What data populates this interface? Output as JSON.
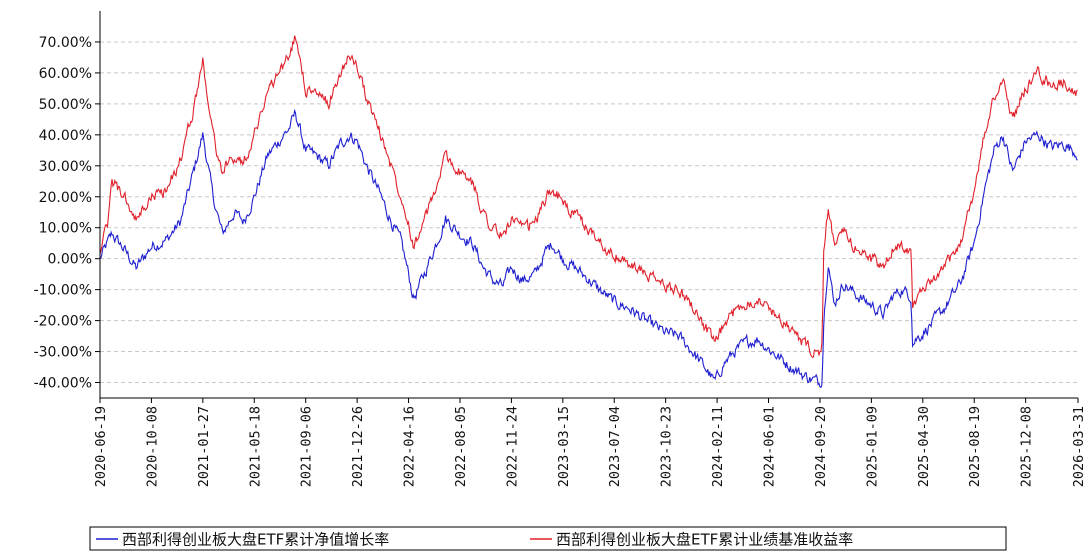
{
  "chart_data": {
    "type": "line",
    "title": "",
    "xlabel": "",
    "ylabel": "",
    "x_ticks": [
      "2020-06-19",
      "2020-10-08",
      "2021-01-27",
      "2021-05-18",
      "2021-09-06",
      "2021-12-26",
      "2022-04-16",
      "2022-08-05",
      "2022-11-24",
      "2023-03-15",
      "2023-07-04",
      "2023-10-23",
      "2024-02-11",
      "2024-06-01",
      "2024-09-20",
      "2025-01-09",
      "2025-04-30",
      "2025-08-19",
      "2025-12-08",
      "2026-03-31"
    ],
    "y_ticks": [
      "70.00%",
      "60.00%",
      "50.00%",
      "40.00%",
      "30.00%",
      "20.00%",
      "10.00%",
      "0.00%",
      "-10.00%",
      "-20.00%",
      "-30.00%",
      "-40.00%"
    ],
    "ylim": [
      -45,
      80
    ],
    "grid": true,
    "legend_position": "bottom",
    "series": [
      {
        "name": "西部利得创业板大盘ETF累计净值增长率",
        "color": "#1f1fd0",
        "points": [
          [
            "2020-06-19",
            0
          ],
          [
            "2020-07-15",
            8
          ],
          [
            "2020-08-10",
            3
          ],
          [
            "2020-09-05",
            -3
          ],
          [
            "2020-10-08",
            4
          ],
          [
            "2020-11-10",
            6
          ],
          [
            "2020-12-10",
            12
          ],
          [
            "2021-01-05",
            27
          ],
          [
            "2021-01-27",
            40
          ],
          [
            "2021-02-18",
            20
          ],
          [
            "2021-03-10",
            8
          ],
          [
            "2021-04-05",
            15
          ],
          [
            "2021-04-25",
            12
          ],
          [
            "2021-05-18",
            20
          ],
          [
            "2021-06-15",
            33
          ],
          [
            "2021-07-10",
            38
          ],
          [
            "2021-08-01",
            42
          ],
          [
            "2021-08-15",
            47
          ],
          [
            "2021-09-06",
            35
          ],
          [
            "2021-10-01",
            33
          ],
          [
            "2021-10-25",
            30
          ],
          [
            "2021-11-20",
            37
          ],
          [
            "2021-12-10",
            40
          ],
          [
            "2021-12-26",
            38
          ],
          [
            "2022-01-15",
            30
          ],
          [
            "2022-02-10",
            22
          ],
          [
            "2022-03-10",
            12
          ],
          [
            "2022-04-01",
            5
          ],
          [
            "2022-04-16",
            -5
          ],
          [
            "2022-04-27",
            -13
          ],
          [
            "2022-05-20",
            -5
          ],
          [
            "2022-06-15",
            5
          ],
          [
            "2022-07-05",
            13
          ],
          [
            "2022-08-05",
            8
          ],
          [
            "2022-09-01",
            5
          ],
          [
            "2022-09-25",
            -3
          ],
          [
            "2022-10-15",
            -7
          ],
          [
            "2022-11-05",
            -9
          ],
          [
            "2022-11-24",
            -3
          ],
          [
            "2022-12-20",
            -7
          ],
          [
            "2023-01-15",
            -5
          ],
          [
            "2023-02-05",
            2
          ],
          [
            "2023-02-20",
            5
          ],
          [
            "2023-03-15",
            0
          ],
          [
            "2023-04-10",
            -3
          ],
          [
            "2023-05-05",
            -6
          ],
          [
            "2023-06-01",
            -10
          ],
          [
            "2023-07-04",
            -14
          ],
          [
            "2023-08-05",
            -16
          ],
          [
            "2023-09-10",
            -20
          ],
          [
            "2023-10-23",
            -24
          ],
          [
            "2023-11-20",
            -25
          ],
          [
            "2023-12-20",
            -30
          ],
          [
            "2024-01-20",
            -36
          ],
          [
            "2024-02-06",
            -40
          ],
          [
            "2024-02-25",
            -34
          ],
          [
            "2024-03-20",
            -30
          ],
          [
            "2024-04-15",
            -27
          ],
          [
            "2024-05-10",
            -26
          ],
          [
            "2024-06-01",
            -29
          ],
          [
            "2024-06-25",
            -32
          ],
          [
            "2024-07-20",
            -35
          ],
          [
            "2024-08-20",
            -38
          ],
          [
            "2024-09-20",
            -40
          ],
          [
            "2024-09-25",
            -38
          ],
          [
            "2024-09-28",
            -20
          ],
          [
            "2024-10-08",
            0
          ],
          [
            "2024-10-20",
            -15
          ],
          [
            "2024-11-10",
            -8
          ],
          [
            "2024-12-10",
            -12
          ],
          [
            "2025-01-09",
            -15
          ],
          [
            "2025-02-05",
            -18
          ],
          [
            "2025-02-25",
            -12
          ],
          [
            "2025-03-15",
            -10
          ],
          [
            "2025-04-05",
            -12
          ],
          [
            "2025-04-08",
            -27
          ],
          [
            "2025-04-30",
            -24
          ],
          [
            "2025-05-25",
            -20
          ],
          [
            "2025-06-20",
            -15
          ],
          [
            "2025-07-20",
            -8
          ],
          [
            "2025-08-19",
            5
          ],
          [
            "2025-09-10",
            22
          ],
          [
            "2025-10-01",
            35
          ],
          [
            "2025-10-20",
            40
          ],
          [
            "2025-11-10",
            28
          ],
          [
            "2025-12-08",
            38
          ],
          [
            "2026-01-05",
            40
          ],
          [
            "2026-02-01",
            36
          ],
          [
            "2026-03-01",
            37
          ],
          [
            "2026-03-31",
            34
          ]
        ]
      },
      {
        "name": "西部利得创业板大盘ETF累计业绩基准收益率",
        "color": "#e0202a",
        "points": [
          [
            "2020-06-19",
            3
          ],
          [
            "2020-07-05",
            10
          ],
          [
            "2020-07-15",
            25
          ],
          [
            "2020-08-10",
            20
          ],
          [
            "2020-09-05",
            12
          ],
          [
            "2020-10-08",
            20
          ],
          [
            "2020-11-10",
            22
          ],
          [
            "2020-12-10",
            32
          ],
          [
            "2021-01-05",
            47
          ],
          [
            "2021-01-27",
            64
          ],
          [
            "2021-02-18",
            40
          ],
          [
            "2021-03-10",
            28
          ],
          [
            "2021-04-05",
            33
          ],
          [
            "2021-04-25",
            31
          ],
          [
            "2021-05-18",
            40
          ],
          [
            "2021-06-15",
            54
          ],
          [
            "2021-07-10",
            60
          ],
          [
            "2021-08-01",
            65
          ],
          [
            "2021-08-15",
            72
          ],
          [
            "2021-09-06",
            55
          ],
          [
            "2021-10-01",
            53
          ],
          [
            "2021-10-25",
            50
          ],
          [
            "2021-11-20",
            60
          ],
          [
            "2021-12-10",
            66
          ],
          [
            "2021-12-26",
            62
          ],
          [
            "2022-01-15",
            52
          ],
          [
            "2022-02-10",
            42
          ],
          [
            "2022-03-10",
            30
          ],
          [
            "2022-04-01",
            20
          ],
          [
            "2022-04-16",
            12
          ],
          [
            "2022-04-27",
            4
          ],
          [
            "2022-05-20",
            12
          ],
          [
            "2022-06-15",
            23
          ],
          [
            "2022-07-05",
            33
          ],
          [
            "2022-08-05",
            28
          ],
          [
            "2022-09-01",
            24
          ],
          [
            "2022-09-25",
            15
          ],
          [
            "2022-10-15",
            10
          ],
          [
            "2022-11-05",
            7
          ],
          [
            "2022-11-24",
            13
          ],
          [
            "2022-12-20",
            9
          ],
          [
            "2023-01-15",
            12
          ],
          [
            "2023-02-05",
            19
          ],
          [
            "2023-02-20",
            23
          ],
          [
            "2023-03-15",
            18
          ],
          [
            "2023-04-10",
            14
          ],
          [
            "2023-05-05",
            10
          ],
          [
            "2023-06-01",
            6
          ],
          [
            "2023-07-04",
            1
          ],
          [
            "2023-08-05",
            -2
          ],
          [
            "2023-09-10",
            -5
          ],
          [
            "2023-10-23",
            -9
          ],
          [
            "2023-11-20",
            -10
          ],
          [
            "2023-12-20",
            -15
          ],
          [
            "2024-01-20",
            -23
          ],
          [
            "2024-02-06",
            -28
          ],
          [
            "2024-02-25",
            -22
          ],
          [
            "2024-03-20",
            -17
          ],
          [
            "2024-04-15",
            -14
          ],
          [
            "2024-05-10",
            -13
          ],
          [
            "2024-06-01",
            -16
          ],
          [
            "2024-06-25",
            -19
          ],
          [
            "2024-07-20",
            -23
          ],
          [
            "2024-08-20",
            -28
          ],
          [
            "2024-09-20",
            -31
          ],
          [
            "2024-09-25",
            -28
          ],
          [
            "2024-09-28",
            0
          ],
          [
            "2024-10-08",
            17
          ],
          [
            "2024-10-20",
            5
          ],
          [
            "2024-11-10",
            8
          ],
          [
            "2024-12-10",
            3
          ],
          [
            "2025-01-09",
            0
          ],
          [
            "2025-02-05",
            -3
          ],
          [
            "2025-02-25",
            3
          ],
          [
            "2025-03-15",
            5
          ],
          [
            "2025-04-05",
            2
          ],
          [
            "2025-04-08",
            -14
          ],
          [
            "2025-04-30",
            -11
          ],
          [
            "2025-05-25",
            -7
          ],
          [
            "2025-06-20",
            -2
          ],
          [
            "2025-07-20",
            5
          ],
          [
            "2025-08-19",
            22
          ],
          [
            "2025-09-10",
            40
          ],
          [
            "2025-10-01",
            52
          ],
          [
            "2025-10-20",
            58
          ],
          [
            "2025-11-10",
            45
          ],
          [
            "2025-12-08",
            55
          ],
          [
            "2026-01-05",
            60
          ],
          [
            "2026-02-01",
            56
          ],
          [
            "2026-03-01",
            57
          ],
          [
            "2026-03-31",
            53
          ]
        ]
      }
    ]
  }
}
